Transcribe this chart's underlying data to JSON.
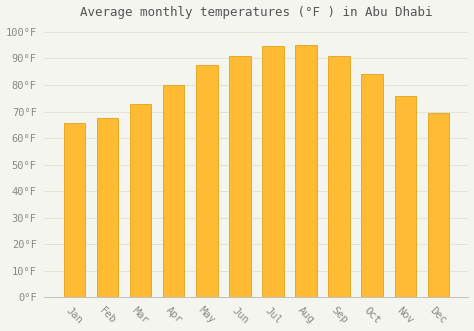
{
  "title": "Average monthly temperatures (°F ) in Abu Dhabi",
  "months": [
    "Jan",
    "Feb",
    "Mar",
    "Apr",
    "May",
    "Jun",
    "Jul",
    "Aug",
    "Sep",
    "Oct",
    "Nov",
    "Dec"
  ],
  "values": [
    65.5,
    67.5,
    73.0,
    80.0,
    87.5,
    91.0,
    94.5,
    95.0,
    91.0,
    84.0,
    76.0,
    69.5
  ],
  "bar_color": "#FFBB33",
  "bar_edge_color": "#E09900",
  "background_color": "#F5F5F0",
  "plot_bg_color": "#F5F5F0",
  "grid_color": "#DDDDCC",
  "yticks": [
    0,
    10,
    20,
    30,
    40,
    50,
    60,
    70,
    80,
    90,
    100
  ],
  "ylim": [
    0,
    103
  ],
  "title_fontsize": 9,
  "tick_fontsize": 7.5,
  "title_color": "#555555",
  "tick_color": "#888888",
  "font_family": "monospace",
  "xlabel_rotation": -45,
  "bar_width": 0.65
}
